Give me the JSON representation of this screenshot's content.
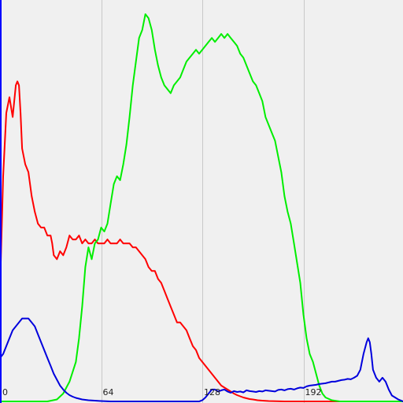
{
  "chart_data": {
    "type": "line",
    "title": "",
    "xlabel": "",
    "ylabel": "",
    "xlim": [
      0,
      255
    ],
    "ylim": [
      0,
      100
    ],
    "grid": true,
    "x_ticks": [
      0,
      64,
      128,
      192
    ],
    "x_tick_labels": [
      "0",
      "64",
      "128",
      "192"
    ],
    "series": [
      {
        "color": "#ff0000",
        "points": [
          [
            0,
            28
          ],
          [
            2,
            57
          ],
          [
            4,
            73
          ],
          [
            6,
            77
          ],
          [
            8,
            72
          ],
          [
            10,
            80
          ],
          [
            11,
            81
          ],
          [
            12,
            80
          ],
          [
            13,
            73
          ],
          [
            14,
            64
          ],
          [
            16,
            60
          ],
          [
            18,
            58
          ],
          [
            20,
            52
          ],
          [
            22,
            48
          ],
          [
            24,
            45
          ],
          [
            26,
            44
          ],
          [
            28,
            44
          ],
          [
            30,
            42
          ],
          [
            32,
            42
          ],
          [
            33,
            40
          ],
          [
            34,
            37
          ],
          [
            36,
            36
          ],
          [
            38,
            38
          ],
          [
            40,
            37
          ],
          [
            42,
            39
          ],
          [
            44,
            42
          ],
          [
            46,
            41
          ],
          [
            48,
            41
          ],
          [
            50,
            42
          ],
          [
            52,
            40
          ],
          [
            54,
            41
          ],
          [
            56,
            40
          ],
          [
            58,
            40
          ],
          [
            60,
            41
          ],
          [
            62,
            40
          ],
          [
            64,
            40
          ],
          [
            66,
            40
          ],
          [
            68,
            41
          ],
          [
            70,
            40
          ],
          [
            72,
            40
          ],
          [
            74,
            40
          ],
          [
            76,
            41
          ],
          [
            78,
            40
          ],
          [
            80,
            40
          ],
          [
            82,
            40
          ],
          [
            84,
            39
          ],
          [
            86,
            39
          ],
          [
            88,
            38
          ],
          [
            90,
            37
          ],
          [
            92,
            36
          ],
          [
            94,
            34
          ],
          [
            96,
            33
          ],
          [
            98,
            33
          ],
          [
            100,
            31
          ],
          [
            102,
            30
          ],
          [
            104,
            28
          ],
          [
            106,
            26
          ],
          [
            108,
            24
          ],
          [
            110,
            22
          ],
          [
            112,
            20
          ],
          [
            114,
            20
          ],
          [
            116,
            19
          ],
          [
            118,
            18
          ],
          [
            120,
            16
          ],
          [
            122,
            14
          ],
          [
            124,
            13
          ],
          [
            126,
            11
          ],
          [
            128,
            10
          ],
          [
            130,
            9
          ],
          [
            132,
            8
          ],
          [
            134,
            7
          ],
          [
            136,
            6
          ],
          [
            138,
            5
          ],
          [
            140,
            4
          ],
          [
            142,
            3.5
          ],
          [
            144,
            3
          ],
          [
            146,
            2.5
          ],
          [
            148,
            2
          ],
          [
            150,
            1.6
          ],
          [
            152,
            1.3
          ],
          [
            154,
            1
          ],
          [
            156,
            0.8
          ],
          [
            158,
            0.6
          ],
          [
            160,
            0.5
          ],
          [
            163,
            0.3
          ],
          [
            166,
            0.2
          ],
          [
            170,
            0.1
          ],
          [
            180,
            0
          ],
          [
            190,
            0
          ],
          [
            200,
            0
          ],
          [
            210,
            0
          ],
          [
            220,
            0
          ],
          [
            230,
            0
          ],
          [
            240,
            0
          ],
          [
            255,
            0
          ]
        ]
      },
      {
        "color": "#00ee00",
        "points": [
          [
            0,
            0
          ],
          [
            20,
            0
          ],
          [
            30,
            0
          ],
          [
            36,
            0.5
          ],
          [
            40,
            2
          ],
          [
            44,
            5
          ],
          [
            48,
            10
          ],
          [
            50,
            16
          ],
          [
            52,
            24
          ],
          [
            54,
            34
          ],
          [
            56,
            39
          ],
          [
            58,
            36
          ],
          [
            60,
            40
          ],
          [
            62,
            41
          ],
          [
            64,
            44
          ],
          [
            66,
            43
          ],
          [
            68,
            45
          ],
          [
            70,
            50
          ],
          [
            72,
            55
          ],
          [
            74,
            57
          ],
          [
            76,
            56
          ],
          [
            78,
            60
          ],
          [
            80,
            65
          ],
          [
            82,
            72
          ],
          [
            84,
            80
          ],
          [
            86,
            86
          ],
          [
            88,
            92
          ],
          [
            90,
            94
          ],
          [
            92,
            98
          ],
          [
            94,
            97
          ],
          [
            96,
            94
          ],
          [
            98,
            89
          ],
          [
            100,
            85
          ],
          [
            102,
            82
          ],
          [
            104,
            80
          ],
          [
            106,
            79
          ],
          [
            108,
            78
          ],
          [
            110,
            80
          ],
          [
            112,
            81
          ],
          [
            114,
            82
          ],
          [
            116,
            84
          ],
          [
            118,
            86
          ],
          [
            120,
            87
          ],
          [
            122,
            88
          ],
          [
            124,
            89
          ],
          [
            126,
            88
          ],
          [
            128,
            89
          ],
          [
            130,
            90
          ],
          [
            132,
            91
          ],
          [
            134,
            92
          ],
          [
            136,
            91
          ],
          [
            138,
            92
          ],
          [
            140,
            93
          ],
          [
            142,
            92
          ],
          [
            144,
            93
          ],
          [
            146,
            92
          ],
          [
            148,
            91
          ],
          [
            150,
            90
          ],
          [
            152,
            88
          ],
          [
            154,
            87
          ],
          [
            156,
            85
          ],
          [
            158,
            83
          ],
          [
            160,
            81
          ],
          [
            162,
            80
          ],
          [
            164,
            78
          ],
          [
            166,
            76
          ],
          [
            168,
            72
          ],
          [
            170,
            70
          ],
          [
            172,
            68
          ],
          [
            174,
            66
          ],
          [
            176,
            62
          ],
          [
            178,
            58
          ],
          [
            180,
            52
          ],
          [
            182,
            48
          ],
          [
            184,
            45
          ],
          [
            186,
            40
          ],
          [
            188,
            35
          ],
          [
            190,
            30
          ],
          [
            192,
            22
          ],
          [
            194,
            16
          ],
          [
            196,
            12
          ],
          [
            198,
            10
          ],
          [
            200,
            7
          ],
          [
            202,
            4
          ],
          [
            204,
            2
          ],
          [
            206,
            1
          ],
          [
            210,
            0.3
          ],
          [
            215,
            0
          ],
          [
            230,
            0
          ],
          [
            255,
            0
          ]
        ]
      },
      {
        "color": "#0000dd",
        "points": [
          [
            0,
            11
          ],
          [
            2,
            12
          ],
          [
            4,
            14
          ],
          [
            6,
            16
          ],
          [
            8,
            18
          ],
          [
            10,
            19
          ],
          [
            12,
            20
          ],
          [
            14,
            21
          ],
          [
            16,
            21
          ],
          [
            18,
            21
          ],
          [
            20,
            20
          ],
          [
            22,
            19
          ],
          [
            24,
            17
          ],
          [
            26,
            15
          ],
          [
            28,
            13
          ],
          [
            30,
            11
          ],
          [
            32,
            9
          ],
          [
            34,
            7
          ],
          [
            36,
            5.5
          ],
          [
            38,
            4
          ],
          [
            40,
            3
          ],
          [
            42,
            2.2
          ],
          [
            44,
            1.6
          ],
          [
            46,
            1.2
          ],
          [
            48,
            0.9
          ],
          [
            50,
            0.7
          ],
          [
            52,
            0.5
          ],
          [
            54,
            0.4
          ],
          [
            56,
            0.3
          ],
          [
            60,
            0.2
          ],
          [
            64,
            0.1
          ],
          [
            70,
            0
          ],
          [
            80,
            0
          ],
          [
            90,
            0
          ],
          [
            100,
            0
          ],
          [
            110,
            0
          ],
          [
            120,
            0
          ],
          [
            126,
            0
          ],
          [
            128,
            0.3
          ],
          [
            130,
            1
          ],
          [
            132,
            2
          ],
          [
            134,
            3
          ],
          [
            136,
            3
          ],
          [
            138,
            2.5
          ],
          [
            140,
            2.8
          ],
          [
            142,
            3
          ],
          [
            144,
            2.5
          ],
          [
            146,
            2.2
          ],
          [
            148,
            2.6
          ],
          [
            150,
            2.4
          ],
          [
            152,
            2.5
          ],
          [
            154,
            2.3
          ],
          [
            156,
            2.8
          ],
          [
            158,
            2.6
          ],
          [
            160,
            2.5
          ],
          [
            162,
            2.4
          ],
          [
            164,
            2.6
          ],
          [
            166,
            2.5
          ],
          [
            168,
            2.8
          ],
          [
            170,
            2.7
          ],
          [
            172,
            2.6
          ],
          [
            174,
            2.5
          ],
          [
            176,
            2.9
          ],
          [
            178,
            3
          ],
          [
            180,
            2.8
          ],
          [
            182,
            3.1
          ],
          [
            184,
            3.2
          ],
          [
            186,
            3
          ],
          [
            188,
            3.3
          ],
          [
            190,
            3.5
          ],
          [
            192,
            3.4
          ],
          [
            194,
            3.8
          ],
          [
            196,
            4
          ],
          [
            198,
            4.1
          ],
          [
            200,
            4.2
          ],
          [
            202,
            4.4
          ],
          [
            204,
            4.5
          ],
          [
            206,
            4.6
          ],
          [
            208,
            4.8
          ],
          [
            210,
            5
          ],
          [
            212,
            5
          ],
          [
            214,
            5.2
          ],
          [
            216,
            5.4
          ],
          [
            218,
            5.5
          ],
          [
            220,
            5.7
          ],
          [
            222,
            5.6
          ],
          [
            224,
            6
          ],
          [
            226,
            6.5
          ],
          [
            228,
            8
          ],
          [
            230,
            12
          ],
          [
            232,
            15
          ],
          [
            233,
            16
          ],
          [
            234,
            15
          ],
          [
            235,
            12
          ],
          [
            236,
            8
          ],
          [
            238,
            6
          ],
          [
            240,
            5
          ],
          [
            242,
            6
          ],
          [
            244,
            5
          ],
          [
            246,
            3
          ],
          [
            248,
            1.5
          ],
          [
            250,
            1
          ],
          [
            252,
            0.5
          ],
          [
            255,
            0
          ]
        ]
      }
    ]
  }
}
